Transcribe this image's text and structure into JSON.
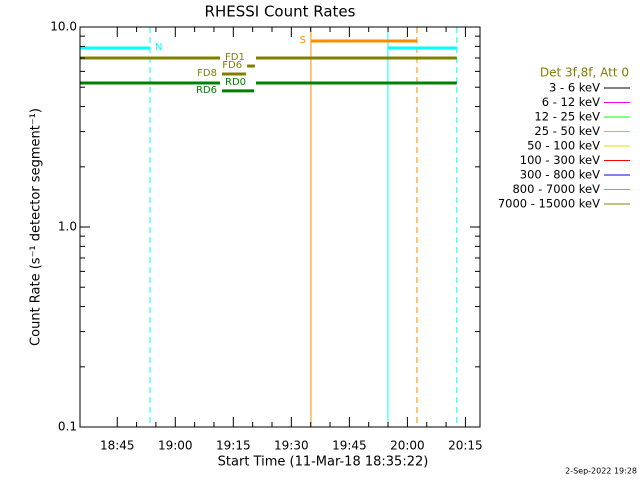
{
  "chart_data": {
    "type": "flags",
    "title": "RHESSI Count Rates",
    "xlabel": "Start Time (11-Mar-18 18:35:22)",
    "ylabel": "Count Rate (s⁻¹ detector segment⁻¹)",
    "log_y": true,
    "ylim": [
      0.1,
      10
    ],
    "yticks": [
      {
        "value": 0.1,
        "label": "0.1"
      },
      {
        "value": 1,
        "label": "1.0"
      },
      {
        "value": 10,
        "label": "10.0"
      }
    ],
    "xlim": [
      0,
      103.4
    ],
    "xticks": [
      {
        "value": 9.63,
        "label": "18:45"
      },
      {
        "value": 24.63,
        "label": "19:00"
      },
      {
        "value": 39.63,
        "label": "19:15"
      },
      {
        "value": 54.63,
        "label": "19:30"
      },
      {
        "value": 69.63,
        "label": "19:45"
      },
      {
        "value": 84.63,
        "label": "20:00"
      },
      {
        "value": 99.63,
        "label": "20:15"
      }
    ],
    "legend_title": "Det 3f,8f, Att 0",
    "series": [
      {
        "name": "3 - 6 keV",
        "color": "#000000"
      },
      {
        "name": "6 - 12 keV",
        "color": "#ff00ff"
      },
      {
        "name": "12 - 25 keV",
        "color": "#00ff00"
      },
      {
        "name": "25 - 50 keV",
        "color": "#00ffff"
      },
      {
        "name": "50 - 100 keV",
        "color": "#e0e000"
      },
      {
        "name": "100 - 300 keV",
        "color": "#ff0000"
      },
      {
        "name": "300 - 800 keV",
        "color": "#0000ff"
      },
      {
        "name": "800 - 7000 keV",
        "color": "#ff8c00"
      },
      {
        "name": "7000 - 15000 keV",
        "color": "#808000"
      }
    ],
    "flags": [
      {
        "label": "N",
        "color": "#00ffff",
        "value": 7.85,
        "x": [
          0,
          18.1
        ]
      },
      {
        "color": "#00ffff",
        "value": 7.85,
        "x": [
          79.6,
          97.4
        ]
      },
      {
        "label": "S",
        "color": "#ff8c00",
        "value": 8.51,
        "x": [
          59.7,
          87.1
        ]
      },
      {
        "label": "FD1",
        "color": "#808000",
        "value": 7.0,
        "x": [
          0,
          36.2
        ]
      },
      {
        "color": "#808000",
        "value": 7.0,
        "x": [
          45.5,
          97.4
        ]
      },
      {
        "label": "FD6",
        "color": "#808000",
        "value": 6.38,
        "x": [
          43.2,
          45.2
        ]
      },
      {
        "label": "FD8",
        "color": "#808000",
        "value": 5.82,
        "x": [
          36.7,
          42.9
        ]
      },
      {
        "label": "RD0",
        "color": "#008000",
        "value": 5.25,
        "x": [
          0,
          36.2
        ]
      },
      {
        "color": "#008000",
        "value": 5.25,
        "x": [
          45.5,
          97.4
        ]
      },
      {
        "label": "RD6",
        "color": "#008000",
        "value": 4.79,
        "x": [
          36.7,
          45.0
        ]
      }
    ],
    "vlines": [
      {
        "x": 0,
        "color": "#00ffff",
        "dashed": false
      },
      {
        "x": 18.1,
        "color": "#00ffff",
        "dashed": true
      },
      {
        "x": 79.6,
        "color": "#00ffff",
        "dashed": false
      },
      {
        "x": 97.4,
        "color": "#00ffff",
        "dashed": true
      },
      {
        "x": 59.7,
        "color": "#ff8c00",
        "dashed": false
      },
      {
        "x": 87.1,
        "color": "#ff8c00",
        "dashed": true
      }
    ],
    "timestamp": "2-Sep-2022 19:28"
  }
}
